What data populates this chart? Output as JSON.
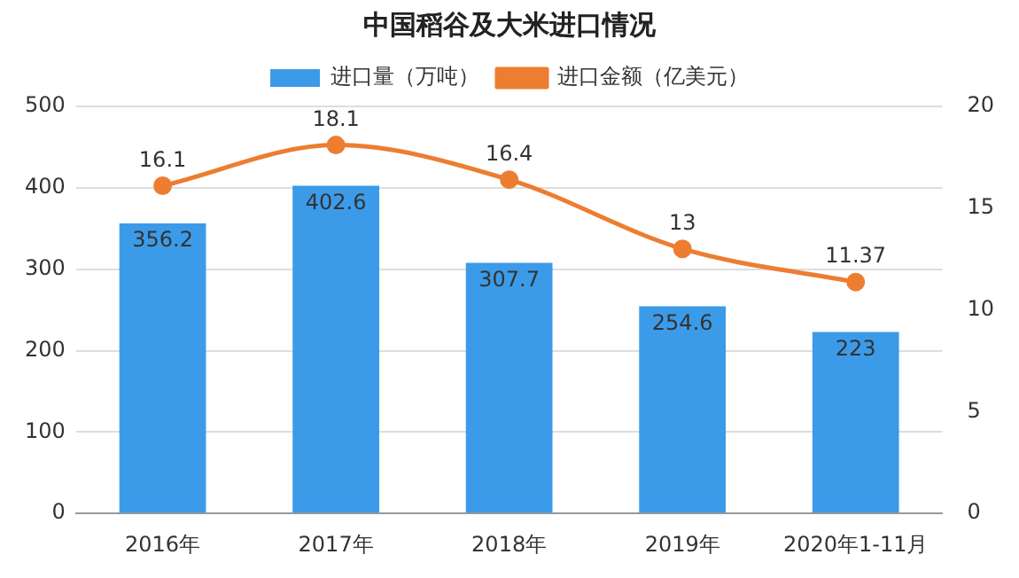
{
  "chart_data": {
    "type": "bar",
    "title": "中国稻谷及大米进口情况",
    "categories": [
      "2016年",
      "2017年",
      "2018年",
      "2019年",
      "2020年1-11月"
    ],
    "series": [
      {
        "name": "进口量（万吨）",
        "color": "#3c9be8",
        "values": [
          356.2,
          402.6,
          307.7,
          254.6,
          223
        ]
      },
      {
        "name": "进口金额（亿美元）",
        "type": "line",
        "axis": "y2",
        "color": "#ed7d31",
        "values": [
          16.1,
          18.1,
          16.4,
          13,
          11.37
        ]
      }
    ],
    "ylim": [
      0,
      500
    ],
    "yticks": [
      0,
      100,
      200,
      300,
      400,
      500
    ],
    "y2lim": [
      0,
      20
    ],
    "y2ticks": [
      0,
      5,
      10,
      15,
      20
    ],
    "grid": "y",
    "legend": "top",
    "data_labels": true,
    "marker": "circle"
  }
}
